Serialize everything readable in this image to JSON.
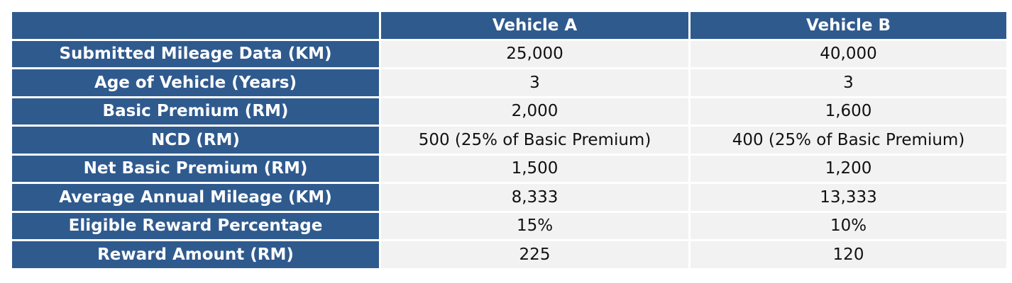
{
  "table": {
    "columns": [
      "",
      "Vehicle A",
      "Vehicle B"
    ],
    "rows": [
      {
        "label": "Submitted Mileage Data (KM)",
        "a": "25,000",
        "b": "40,000"
      },
      {
        "label": "Age of Vehicle (Years)",
        "a": "3",
        "b": "3"
      },
      {
        "label": "Basic Premium (RM)",
        "a": "2,000",
        "b": "1,600"
      },
      {
        "label": "NCD (RM)",
        "a": "500 (25% of Basic Premium)",
        "b": "400 (25% of Basic Premium)"
      },
      {
        "label": "Net Basic Premium (RM)",
        "a": "1,500",
        "b": "1,200"
      },
      {
        "label": "Average Annual Mileage (KM)",
        "a": "8,333",
        "b": "13,333"
      },
      {
        "label": "Eligible Reward Percentage",
        "a": "15%",
        "b": "10%"
      },
      {
        "label": "Reward Amount (RM)",
        "a": "225",
        "b": "120"
      }
    ]
  },
  "colors": {
    "header_background": "#2f5a8e",
    "header_text": "#ffffff",
    "cell_background": "#f2f2f2",
    "cell_text": "#111111"
  }
}
